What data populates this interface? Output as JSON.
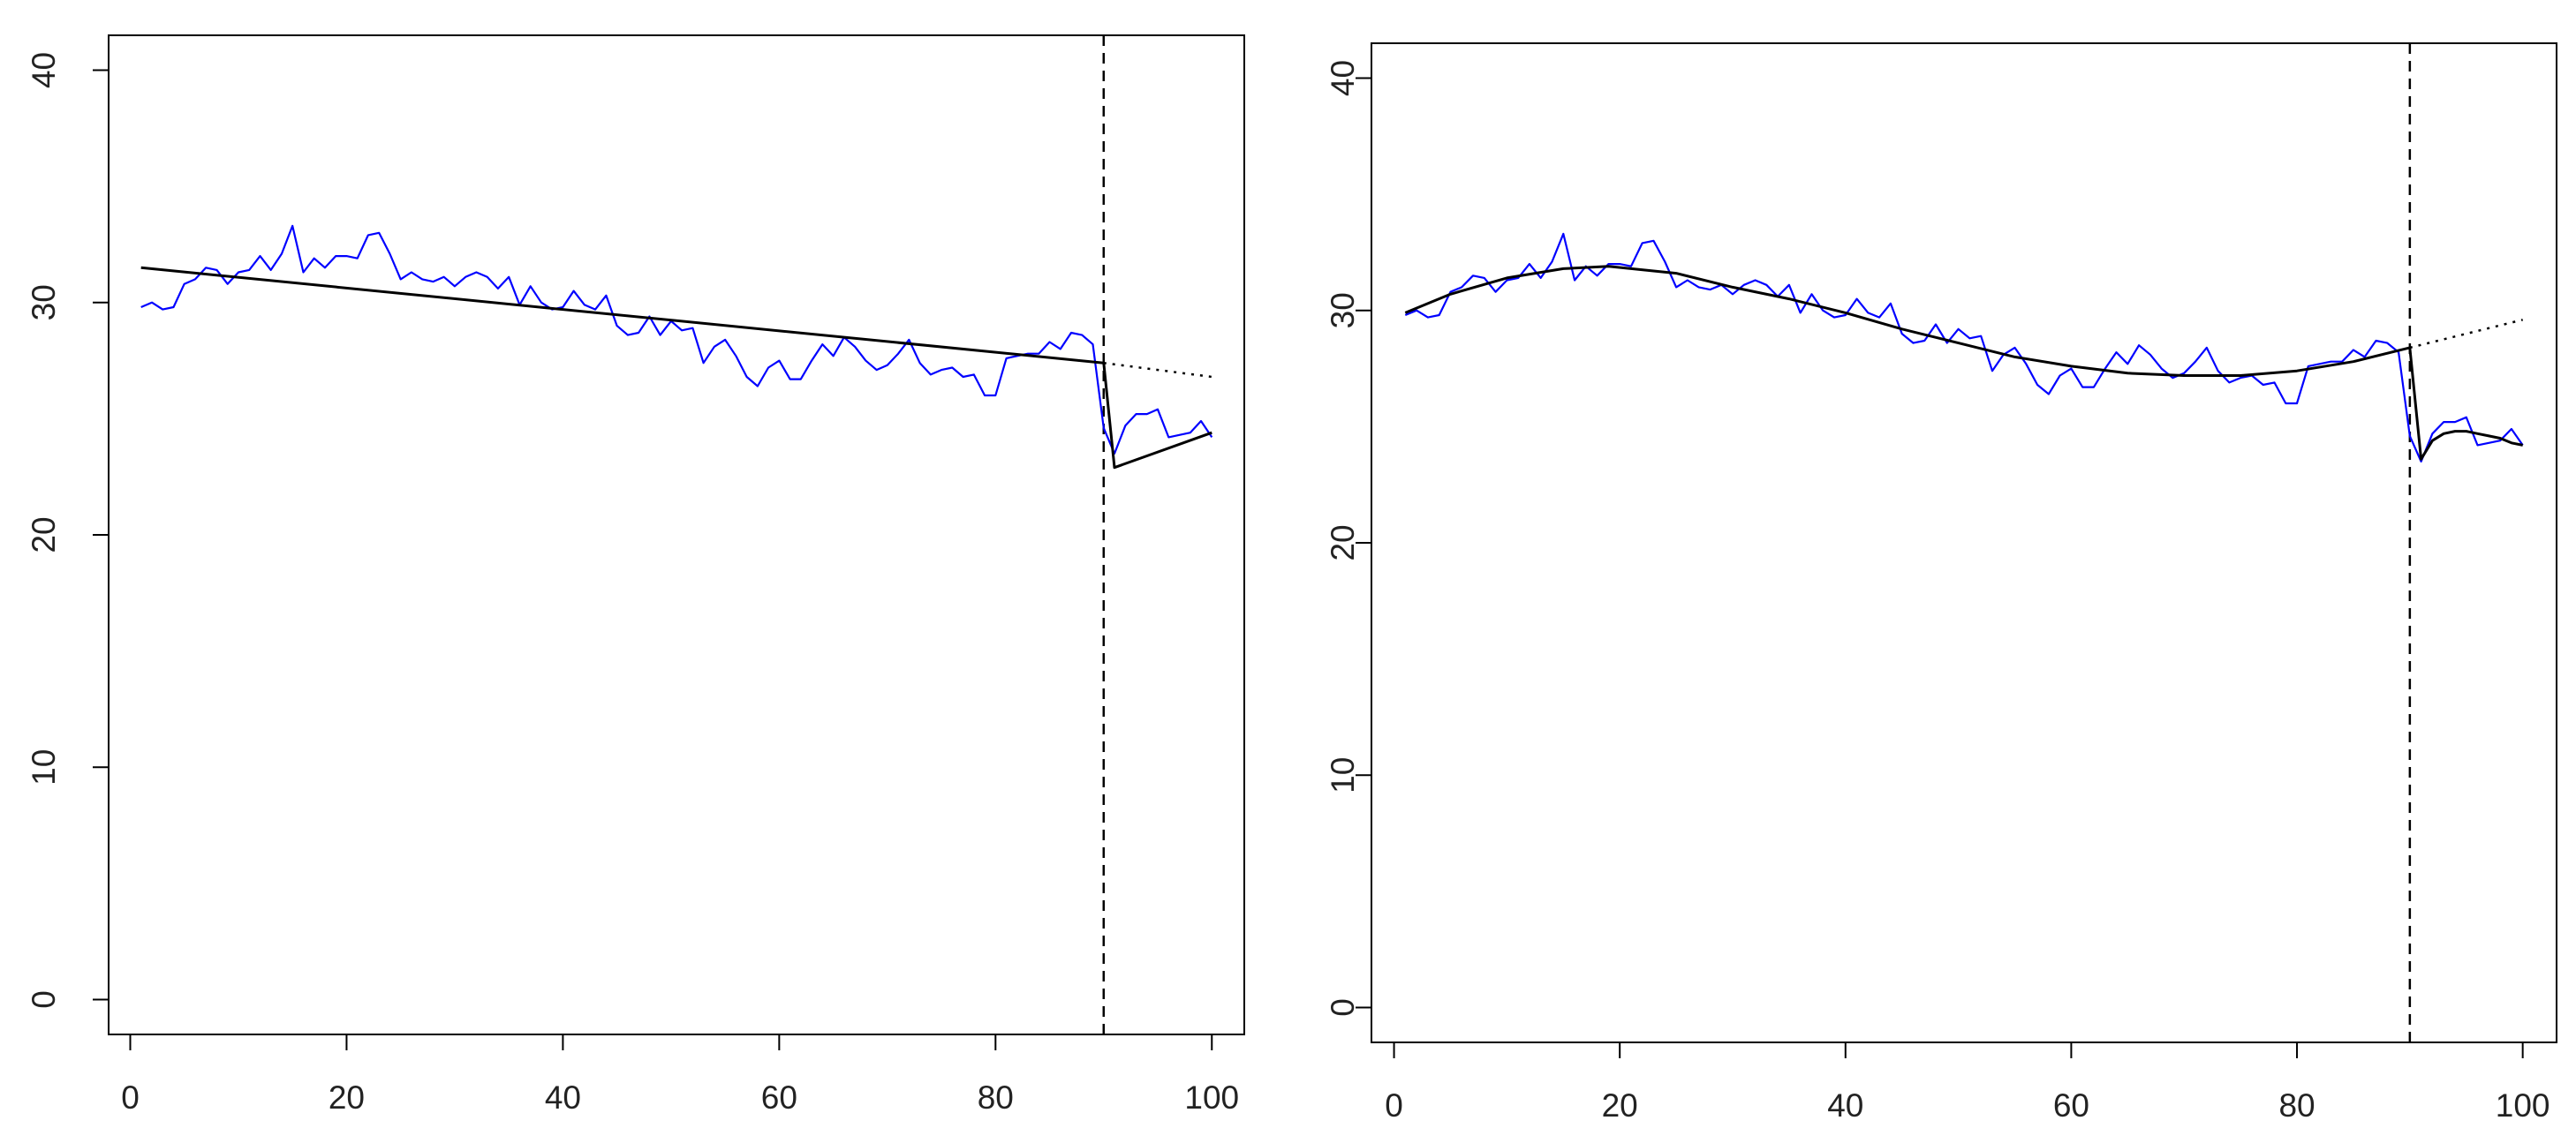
{
  "chart_data": [
    {
      "type": "line",
      "title": "",
      "xlabel": "",
      "ylabel": "",
      "xlim": [
        -2,
        103
      ],
      "ylim": [
        -1.5,
        41.5
      ],
      "xticks": [
        0,
        20,
        40,
        60,
        80,
        100
      ],
      "yticks": [
        0,
        10,
        20,
        30,
        40
      ],
      "xtick_labels": [
        "0",
        "20",
        "40",
        "60",
        "80",
        "100"
      ],
      "ytick_labels": [
        "0",
        "10",
        "20",
        "30",
        "40"
      ],
      "intervention_x": 90,
      "series": [
        {
          "color": "#0000ff",
          "style": "solid",
          "x": [
            1,
            2,
            3,
            4,
            5,
            6,
            7,
            8,
            9,
            10,
            11,
            12,
            13,
            14,
            15,
            16,
            17,
            18,
            19,
            20,
            21,
            22,
            23,
            24,
            25,
            26,
            27,
            28,
            29,
            30,
            31,
            32,
            33,
            34,
            35,
            36,
            37,
            38,
            39,
            40,
            41,
            42,
            43,
            44,
            45,
            46,
            47,
            48,
            49,
            50,
            51,
            52,
            53,
            54,
            55,
            56,
            57,
            58,
            59,
            60,
            61,
            62,
            63,
            64,
            65,
            66,
            67,
            68,
            69,
            70,
            71,
            72,
            73,
            74,
            75,
            76,
            77,
            78,
            79,
            80,
            81,
            82,
            83,
            84,
            85,
            86,
            87,
            88,
            89,
            90,
            91,
            92,
            93,
            94,
            95,
            96,
            97,
            98,
            99,
            100
          ],
          "y": [
            29.8,
            30.0,
            29.7,
            29.8,
            30.8,
            31.0,
            31.5,
            31.4,
            30.8,
            31.3,
            31.4,
            32.0,
            31.4,
            32.1,
            33.3,
            31.3,
            31.9,
            31.5,
            32.0,
            32.0,
            31.9,
            32.9,
            33.0,
            32.1,
            31.0,
            31.3,
            31.0,
            30.9,
            31.1,
            30.7,
            31.1,
            31.3,
            31.1,
            30.6,
            31.1,
            29.9,
            30.7,
            30.0,
            29.7,
            29.8,
            30.5,
            29.9,
            29.7,
            30.3,
            29.0,
            28.6,
            28.7,
            29.4,
            28.6,
            29.2,
            28.8,
            28.9,
            27.4,
            28.1,
            28.4,
            27.7,
            26.8,
            26.4,
            27.2,
            27.5,
            26.7,
            26.7,
            27.5,
            28.2,
            27.7,
            28.5,
            28.1,
            27.5,
            27.1,
            27.3,
            27.8,
            28.4,
            27.4,
            26.9,
            27.1,
            27.2,
            26.8,
            26.9,
            26.0,
            26.0,
            27.6,
            27.7,
            27.8,
            27.8,
            28.3,
            28.0,
            28.7,
            28.6,
            28.2,
            24.6,
            23.5,
            24.7,
            25.2,
            25.2,
            25.4,
            24.2,
            24.3,
            24.4,
            24.9,
            24.2
          ]
        },
        {
          "color": "#000000",
          "style": "solid",
          "x": [
            1,
            90
          ],
          "y": [
            31.5,
            27.4
          ]
        },
        {
          "color": "#000000",
          "style": "solid",
          "x": [
            90,
            91,
            100
          ],
          "y": [
            27.4,
            22.9,
            24.4
          ]
        },
        {
          "color": "#000000",
          "style": "dotted",
          "x": [
            90,
            100
          ],
          "y": [
            27.4,
            26.8
          ]
        }
      ]
    },
    {
      "type": "line",
      "title": "",
      "xlabel": "",
      "ylabel": "",
      "xlim": [
        -2,
        103
      ],
      "ylim": [
        -1.5,
        41.5
      ],
      "xticks": [
        0,
        20,
        40,
        60,
        80,
        100
      ],
      "yticks": [
        0,
        10,
        20,
        30,
        40
      ],
      "xtick_labels": [
        "0",
        "20",
        "40",
        "60",
        "80",
        "100"
      ],
      "ytick_labels": [
        "0",
        "10",
        "20",
        "30",
        "40"
      ],
      "intervention_x": 90,
      "series": [
        {
          "color": "#0000ff",
          "style": "solid",
          "x": [
            1,
            2,
            3,
            4,
            5,
            6,
            7,
            8,
            9,
            10,
            11,
            12,
            13,
            14,
            15,
            16,
            17,
            18,
            19,
            20,
            21,
            22,
            23,
            24,
            25,
            26,
            27,
            28,
            29,
            30,
            31,
            32,
            33,
            34,
            35,
            36,
            37,
            38,
            39,
            40,
            41,
            42,
            43,
            44,
            45,
            46,
            47,
            48,
            49,
            50,
            51,
            52,
            53,
            54,
            55,
            56,
            57,
            58,
            59,
            60,
            61,
            62,
            63,
            64,
            65,
            66,
            67,
            68,
            69,
            70,
            71,
            72,
            73,
            74,
            75,
            76,
            77,
            78,
            79,
            80,
            81,
            82,
            83,
            84,
            85,
            86,
            87,
            88,
            89,
            90,
            91,
            92,
            93,
            94,
            95,
            96,
            97,
            98,
            99,
            100
          ],
          "y": [
            29.8,
            30.0,
            29.7,
            29.8,
            30.8,
            31.0,
            31.5,
            31.4,
            30.8,
            31.3,
            31.4,
            32.0,
            31.4,
            32.1,
            33.3,
            31.3,
            31.9,
            31.5,
            32.0,
            32.0,
            31.9,
            32.9,
            33.0,
            32.1,
            31.0,
            31.3,
            31.0,
            30.9,
            31.1,
            30.7,
            31.1,
            31.3,
            31.1,
            30.6,
            31.1,
            29.9,
            30.7,
            30.0,
            29.7,
            29.8,
            30.5,
            29.9,
            29.7,
            30.3,
            29.0,
            28.6,
            28.7,
            29.4,
            28.6,
            29.2,
            28.8,
            28.9,
            27.4,
            28.1,
            28.4,
            27.7,
            26.8,
            26.4,
            27.2,
            27.5,
            26.7,
            26.7,
            27.5,
            28.2,
            27.7,
            28.5,
            28.1,
            27.5,
            27.1,
            27.3,
            27.8,
            28.4,
            27.4,
            26.9,
            27.1,
            27.2,
            26.8,
            26.9,
            26.0,
            26.0,
            27.6,
            27.7,
            27.8,
            27.8,
            28.3,
            28.0,
            28.7,
            28.6,
            28.2,
            24.6,
            23.5,
            24.7,
            25.2,
            25.2,
            25.4,
            24.2,
            24.3,
            24.4,
            24.9,
            24.2
          ]
        },
        {
          "color": "#000000",
          "style": "solid",
          "x": [
            1,
            5,
            10,
            15,
            19,
            25,
            30,
            35,
            40,
            45,
            50,
            55,
            60,
            65,
            70,
            75,
            80,
            85,
            90
          ],
          "y": [
            29.9,
            30.7,
            31.4,
            31.8,
            31.9,
            31.6,
            31.0,
            30.5,
            29.9,
            29.2,
            28.6,
            28.0,
            27.6,
            27.3,
            27.2,
            27.2,
            27.4,
            27.8,
            28.4
          ]
        },
        {
          "color": "#000000",
          "style": "solid",
          "x": [
            90,
            91,
            92,
            93,
            94,
            95,
            96,
            97,
            98,
            99,
            100
          ],
          "y": [
            28.4,
            23.6,
            24.4,
            24.7,
            24.8,
            24.8,
            24.7,
            24.6,
            24.5,
            24.3,
            24.2
          ]
        },
        {
          "color": "#000000",
          "style": "dotted",
          "x": [
            90,
            95,
            100
          ],
          "y": [
            28.4,
            29.0,
            29.6
          ]
        }
      ]
    }
  ]
}
